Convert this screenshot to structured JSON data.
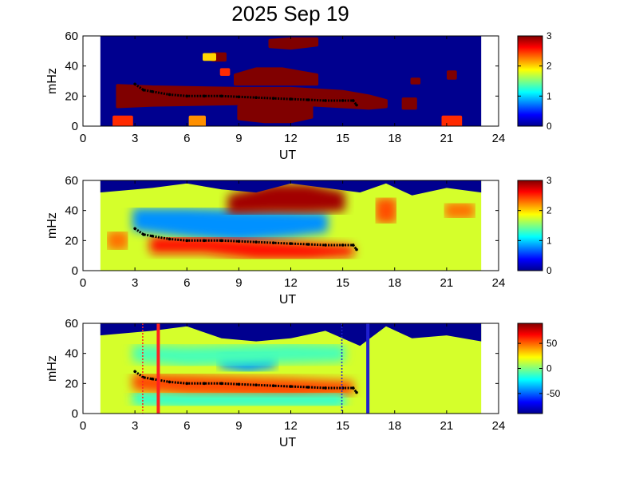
{
  "title": "2025 Sep 19",
  "colors": {
    "background": "#ffffff",
    "fill": "#00008f",
    "ridge": "#000000",
    "red_marker": "#ff2020",
    "blue_marker": "#1f1fd0"
  },
  "chart_data": [
    {
      "type": "heatmap",
      "panel": "top",
      "xlabel": "UT",
      "ylabel": "mHz",
      "xlim": [
        0,
        24
      ],
      "ylim": [
        0,
        60
      ],
      "xticks": [
        "0",
        "3",
        "6",
        "9",
        "12",
        "15",
        "18",
        "21",
        "24"
      ],
      "yticks": [
        "0",
        "20",
        "40",
        "60"
      ],
      "data_range_ut": [
        1.0,
        23.0
      ],
      "colorbar": {
        "range": [
          0,
          3
        ],
        "ticks": [
          "0",
          "1",
          "2",
          "3"
        ],
        "colormap": "jet"
      },
      "background_value": 0,
      "regions": [
        {
          "name": "main band",
          "x": [
            2.0,
            4.0,
            9.0,
            12.0,
            15.0,
            16.5,
            17.5
          ],
          "y": [
            20,
            20,
            20,
            20,
            18,
            16,
            15
          ],
          "half_width": [
            7,
            6,
            5,
            5,
            5,
            4,
            2
          ],
          "value": 3
        },
        {
          "name": "low blob",
          "x": [
            9.0,
            10.5,
            12.0,
            13.2
          ],
          "y": [
            9,
            9,
            9,
            10
          ],
          "half_width": [
            4,
            6,
            6,
            4
          ],
          "value": 3
        },
        {
          "name": "upper blob",
          "x": [
            8.8,
            10.0,
            11.5,
            13.5
          ],
          "y": [
            31,
            33,
            33,
            31
          ],
          "half_width": [
            3,
            5,
            5,
            3
          ],
          "value": 3
        },
        {
          "name": "blob 55",
          "x": [
            10.8,
            12.0,
            13.5
          ],
          "y": [
            55,
            55,
            56
          ],
          "half_width": [
            2,
            3,
            2
          ],
          "value": 3
        },
        {
          "name": "spot 45",
          "x": [
            7.5,
            8.2
          ],
          "y": [
            46,
            46
          ],
          "half_width": [
            2,
            2
          ],
          "value": 3
        },
        {
          "name": "spot 36",
          "x": [
            8.0,
            8.4
          ],
          "y": [
            36,
            36
          ],
          "half_width": [
            1.5,
            1.5
          ],
          "value": 2.5
        },
        {
          "name": "spot 46 left",
          "x": [
            7.0,
            7.6
          ],
          "y": [
            46,
            46
          ],
          "half_width": [
            1.5,
            1.5
          ],
          "value": 2
        },
        {
          "name": "spot 15",
          "x": [
            18.5,
            19.2
          ],
          "y": [
            15,
            15
          ],
          "half_width": [
            3,
            3
          ],
          "value": 3
        },
        {
          "name": "spot 30",
          "x": [
            19.0,
            19.4
          ],
          "y": [
            30,
            30
          ],
          "half_width": [
            1.2,
            1.2
          ],
          "value": 3
        },
        {
          "name": "spot 34",
          "x": [
            21.1,
            21.5
          ],
          "y": [
            34,
            34
          ],
          "half_width": [
            2,
            2
          ],
          "value": 3
        },
        {
          "name": "base left",
          "x": [
            1.8,
            2.8
          ],
          "y": [
            3,
            3
          ],
          "half_width": [
            3,
            3
          ],
          "value": 2.5
        },
        {
          "name": "base right",
          "x": [
            20.8,
            21.8
          ],
          "y": [
            3,
            3
          ],
          "half_width": [
            3,
            3
          ],
          "value": 2.5
        },
        {
          "name": "base 6",
          "x": [
            6.2,
            7.0
          ],
          "y": [
            3,
            3
          ],
          "half_width": [
            3,
            3
          ],
          "value": 2.2
        }
      ]
    },
    {
      "type": "heatmap",
      "panel": "middle",
      "xlabel": "UT",
      "ylabel": "mHz",
      "xlim": [
        0,
        24
      ],
      "ylim": [
        0,
        60
      ],
      "xticks": [
        "0",
        "3",
        "6",
        "9",
        "12",
        "15",
        "18",
        "21",
        "24"
      ],
      "yticks": [
        "0",
        "20",
        "40",
        "60"
      ],
      "data_range_ut": [
        1.0,
        23.0
      ],
      "colorbar": {
        "range": [
          0,
          3
        ],
        "ticks": [
          "0",
          "1",
          "2",
          "3"
        ],
        "colormap": "jet"
      },
      "background_value": 1.75,
      "top_edge_mhz": [
        [
          1,
          52
        ],
        [
          4,
          55
        ],
        [
          6,
          58
        ],
        [
          8,
          54
        ],
        [
          10,
          52
        ],
        [
          12,
          58
        ],
        [
          14,
          55
        ],
        [
          16,
          52
        ],
        [
          17.5,
          58
        ],
        [
          19,
          50
        ],
        [
          21,
          55
        ],
        [
          23,
          52
        ]
      ],
      "regions": [
        {
          "name": "blue mid",
          "x": [
            3.0,
            6.0,
            9.0,
            12.0,
            14.0
          ],
          "y": [
            34,
            32,
            30,
            31,
            32
          ],
          "half_width": [
            6,
            8,
            9,
            7,
            5
          ],
          "value": 0.8
        },
        {
          "name": "red band",
          "x": [
            4.0,
            7.0,
            10.0,
            13.0,
            15.5
          ],
          "y": [
            17,
            17,
            14,
            13,
            13
          ],
          "half_width": [
            4,
            4,
            5,
            4,
            2
          ],
          "value": 2.6
        },
        {
          "name": "red top",
          "x": [
            8.5,
            11.0,
            13.0,
            15.0
          ],
          "y": [
            44,
            48,
            48,
            46
          ],
          "half_width": [
            5,
            8,
            8,
            5
          ],
          "value": 2.9
        },
        {
          "name": "left red",
          "x": [
            1.5,
            2.5
          ],
          "y": [
            20,
            20
          ],
          "half_width": [
            5,
            5
          ],
          "value": 2.3
        },
        {
          "name": "right orange",
          "x": [
            17.0,
            18.0
          ],
          "y": [
            40,
            40
          ],
          "half_width": [
            7,
            7
          ],
          "value": 2.4
        },
        {
          "name": "far orange",
          "x": [
            21.0,
            22.5
          ],
          "y": [
            40,
            40
          ],
          "half_width": [
            4,
            4
          ],
          "value": 2.3
        }
      ]
    },
    {
      "type": "heatmap",
      "panel": "bottom",
      "xlabel": "UT",
      "ylabel": "mHz",
      "xlim": [
        0,
        24
      ],
      "ylim": [
        0,
        60
      ],
      "xticks": [
        "0",
        "3",
        "6",
        "9",
        "12",
        "15",
        "18",
        "21",
        "24"
      ],
      "yticks": [
        "0",
        "20",
        "40",
        "60"
      ],
      "data_range_ut": [
        1.0,
        23.0
      ],
      "colorbar": {
        "range": [
          -90,
          90
        ],
        "ticks": [
          "50",
          "0",
          "-50"
        ],
        "colormap": "jet"
      },
      "background_value": 15,
      "top_edge_mhz": [
        [
          1,
          52
        ],
        [
          4,
          55
        ],
        [
          6,
          58
        ],
        [
          8,
          50
        ],
        [
          10,
          48
        ],
        [
          12,
          50
        ],
        [
          14,
          55
        ],
        [
          16,
          45
        ],
        [
          17.5,
          58
        ],
        [
          19,
          50
        ],
        [
          21,
          52
        ],
        [
          23,
          48
        ]
      ],
      "regions": [
        {
          "name": "orange band",
          "x": [
            3.0,
            6.0,
            9.0,
            12.0,
            15.5
          ],
          "y": [
            21,
            19,
            18,
            17,
            17
          ],
          "half_width": [
            4,
            5,
            5,
            5,
            3
          ],
          "value": 55
        },
        {
          "name": "cyan lower",
          "x": [
            3.0,
            6.0,
            9.0,
            12.0,
            15.0
          ],
          "y": [
            10,
            9,
            9,
            9,
            9
          ],
          "half_width": [
            3,
            3,
            3,
            3,
            3
          ],
          "value": -15
        },
        {
          "name": "blue upper",
          "x": [
            8.0,
            9.5,
            11.0
          ],
          "y": [
            36,
            34,
            36
          ],
          "half_width": [
            4,
            5,
            4
          ],
          "value": -40
        },
        {
          "name": "cyan upper",
          "x": [
            3.0,
            6.0,
            12.0,
            15.0
          ],
          "y": [
            40,
            38,
            40,
            40
          ],
          "half_width": [
            4,
            5,
            5,
            4
          ],
          "value": -10
        }
      ],
      "vertical_markers": [
        {
          "ut": 3.45,
          "style": "dotted",
          "color": "red"
        },
        {
          "ut": 4.35,
          "style": "solid",
          "color": "red"
        },
        {
          "ut": 14.95,
          "style": "dotted",
          "color": "blue"
        },
        {
          "ut": 16.45,
          "style": "solid",
          "color": "blue"
        }
      ]
    }
  ],
  "ridge_line": {
    "ut": [
      3.0,
      3.5,
      4.0,
      5.0,
      6.0,
      7.0,
      8.0,
      9.0,
      10.0,
      11.0,
      12.0,
      13.0,
      14.0,
      15.0,
      15.6,
      15.8
    ],
    "mhz": [
      28,
      24,
      23,
      21,
      20,
      20,
      20,
      19.5,
      19,
      18.5,
      18,
      17.5,
      17,
      17,
      17,
      14
    ]
  }
}
